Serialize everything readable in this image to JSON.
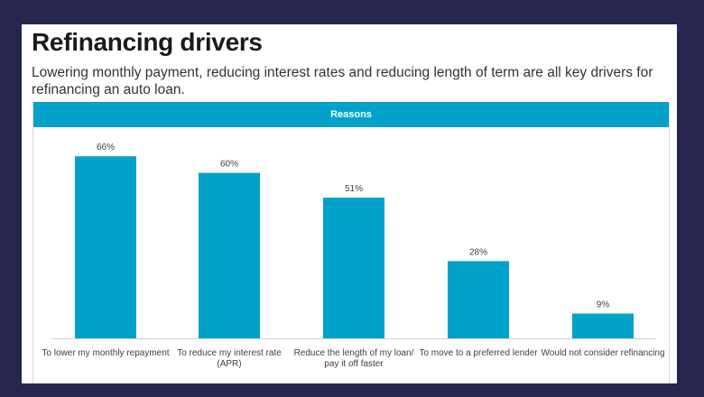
{
  "slide": {
    "title": "Refinancing drivers",
    "subtitle": "Lowering monthly payment, reducing interest rates and reducing length of term are all key drivers for refinancing an auto loan."
  },
  "colors": {
    "background": "#25254d",
    "accent": "#00a2c9"
  },
  "chart_data": {
    "type": "bar",
    "title": "Reasons",
    "categories": [
      "To lower my monthly repayment",
      "To reduce my interest rate (APR)",
      "Reduce the length of my loan/ pay it off faster",
      "To move to a preferred lender",
      "Would not consider refinancing"
    ],
    "category_lines": [
      [
        "To lower my monthly repayment"
      ],
      [
        "To reduce my interest rate",
        "(APR)"
      ],
      [
        "Reduce the length of my loan/",
        "pay it off faster"
      ],
      [
        "To move to a preferred lender"
      ],
      [
        "Would not consider refinancing"
      ]
    ],
    "values": [
      66,
      60,
      51,
      28,
      9
    ],
    "value_labels": [
      "66%",
      "60%",
      "51%",
      "28%",
      "9%"
    ],
    "ylim": [
      0,
      70
    ],
    "xlabel": "",
    "ylabel": "",
    "grid": false,
    "legend": "none"
  }
}
